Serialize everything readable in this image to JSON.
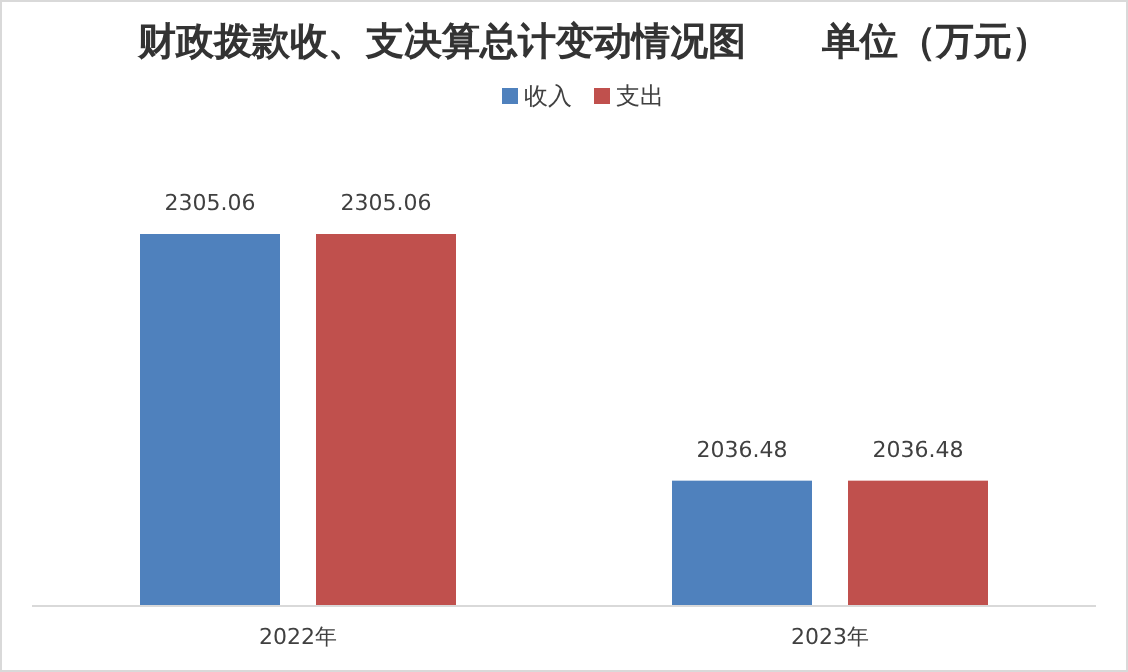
{
  "chart_data": {
    "type": "bar",
    "title": "财政拨款收、支决算总计变动情况图        单位（万元）",
    "categories": [
      "2022年",
      "2023年"
    ],
    "series": [
      {
        "name": "收入",
        "color": "#4f81bd",
        "values": [
          2305.06,
          2036.48
        ]
      },
      {
        "name": "支出",
        "color": "#c0504d",
        "values": [
          2305.06,
          2036.48
        ]
      }
    ],
    "ylim": [
      1900,
      2305.06
    ],
    "data_labels": true,
    "legend": "top",
    "tick_labels": "x"
  }
}
